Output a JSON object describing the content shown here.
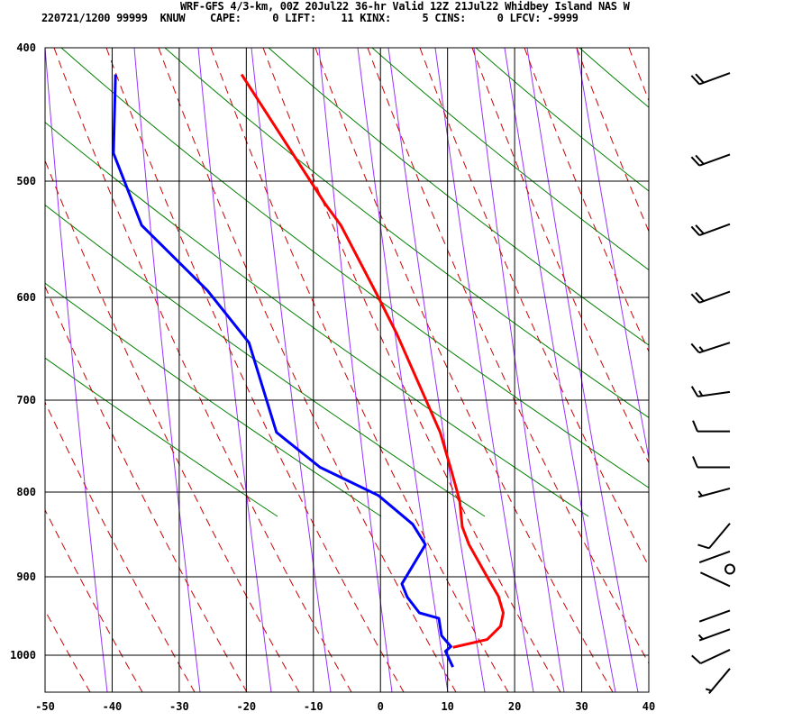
{
  "chart_data": {
    "type": "line",
    "title": "WRF-GFS 4/3-km, 00Z 20Jul22 36-hr Valid 12Z 21Jul22 Whidbey Island NAS W",
    "info": {
      "datetime": "220721/1200",
      "station_num": "99999",
      "station": "KNUW",
      "cape_label": "CAPE:",
      "cape": "0",
      "lift_label": "LIFT:",
      "lift": "11",
      "kinx_label": "KINX:",
      "kinx": "5",
      "cins_label": "CINS:",
      "cins": "0",
      "lfcv_label": "LFCV:",
      "lfcv": "-9999"
    },
    "xlabel": "",
    "ylabel": "",
    "xlim": [
      -50,
      40
    ],
    "ylim": [
      1047,
      400
    ],
    "x_ticks": [
      "-50",
      "-40",
      "-30",
      "-20",
      "-10",
      "0",
      "10",
      "20",
      "30",
      "40"
    ],
    "y_ticks": [
      "400",
      "500",
      "600",
      "700",
      "800",
      "900",
      "1000"
    ],
    "grid": true,
    "series": [
      {
        "name": "temperature",
        "color": "#ff0000",
        "points": [
          [
            420,
            -20.7
          ],
          [
            519,
            -8.3
          ],
          [
            538,
            -5.9
          ],
          [
            600,
            -0.3
          ],
          [
            635,
            2.4
          ],
          [
            735,
            8.9
          ],
          [
            775,
            10.5
          ],
          [
            810,
            11.8
          ],
          [
            841,
            12.2
          ],
          [
            862,
            13.2
          ],
          [
            900,
            15.9
          ],
          [
            925,
            17.6
          ],
          [
            946,
            18.3
          ],
          [
            963,
            17.9
          ],
          [
            980,
            15.9
          ],
          [
            990,
            10.8
          ]
        ]
      },
      {
        "name": "dewpoint",
        "color": "#0000ff",
        "points": [
          [
            420,
            -39.5
          ],
          [
            459,
            -39.7
          ],
          [
            479,
            -39.8
          ],
          [
            538,
            -35.6
          ],
          [
            594,
            -25.8
          ],
          [
            644,
            -19.6
          ],
          [
            735,
            -15.5
          ],
          [
            773,
            -9.0
          ],
          [
            804,
            -0.3
          ],
          [
            838,
            4.8
          ],
          [
            862,
            6.7
          ],
          [
            909,
            3.2
          ],
          [
            926,
            4.0
          ],
          [
            946,
            5.8
          ],
          [
            953,
            8.7
          ],
          [
            975,
            9.1
          ],
          [
            989,
            10.5
          ],
          [
            995,
            9.7
          ],
          [
            1015,
            10.8
          ]
        ]
      }
    ],
    "wind_barbs": [
      {
        "p": 419,
        "dir": 250,
        "kt": 20
      },
      {
        "p": 480,
        "dir": 250,
        "kt": 20
      },
      {
        "p": 537,
        "dir": 250,
        "kt": 20
      },
      {
        "p": 595,
        "dir": 250,
        "kt": 20
      },
      {
        "p": 644,
        "dir": 252,
        "kt": 15
      },
      {
        "p": 692,
        "dir": 262,
        "kt": 15
      },
      {
        "p": 734,
        "dir": 270,
        "kt": 10
      },
      {
        "p": 773,
        "dir": 270,
        "kt": 10
      },
      {
        "p": 796,
        "dir": 255,
        "kt": 5
      },
      {
        "p": 837,
        "dir": 220,
        "kt": 10
      },
      {
        "p": 870,
        "dir": 250,
        "kt": 0
      },
      {
        "p": 891,
        "dir": 0,
        "kt": 0,
        "calm": true
      },
      {
        "p": 912,
        "dir": 295,
        "kt": 0
      },
      {
        "p": 943,
        "dir": 250,
        "kt": 0
      },
      {
        "p": 967,
        "dir": 250,
        "kt": 5
      },
      {
        "p": 993,
        "dir": 245,
        "kt": 10
      },
      {
        "p": 1017,
        "dir": 220,
        "kt": 5
      }
    ],
    "colors": {
      "grid": "#000000",
      "dry_adiabat": "#008000",
      "moist_adiabat": "#cc0000",
      "mixing_ratio": "#9933ff"
    }
  }
}
